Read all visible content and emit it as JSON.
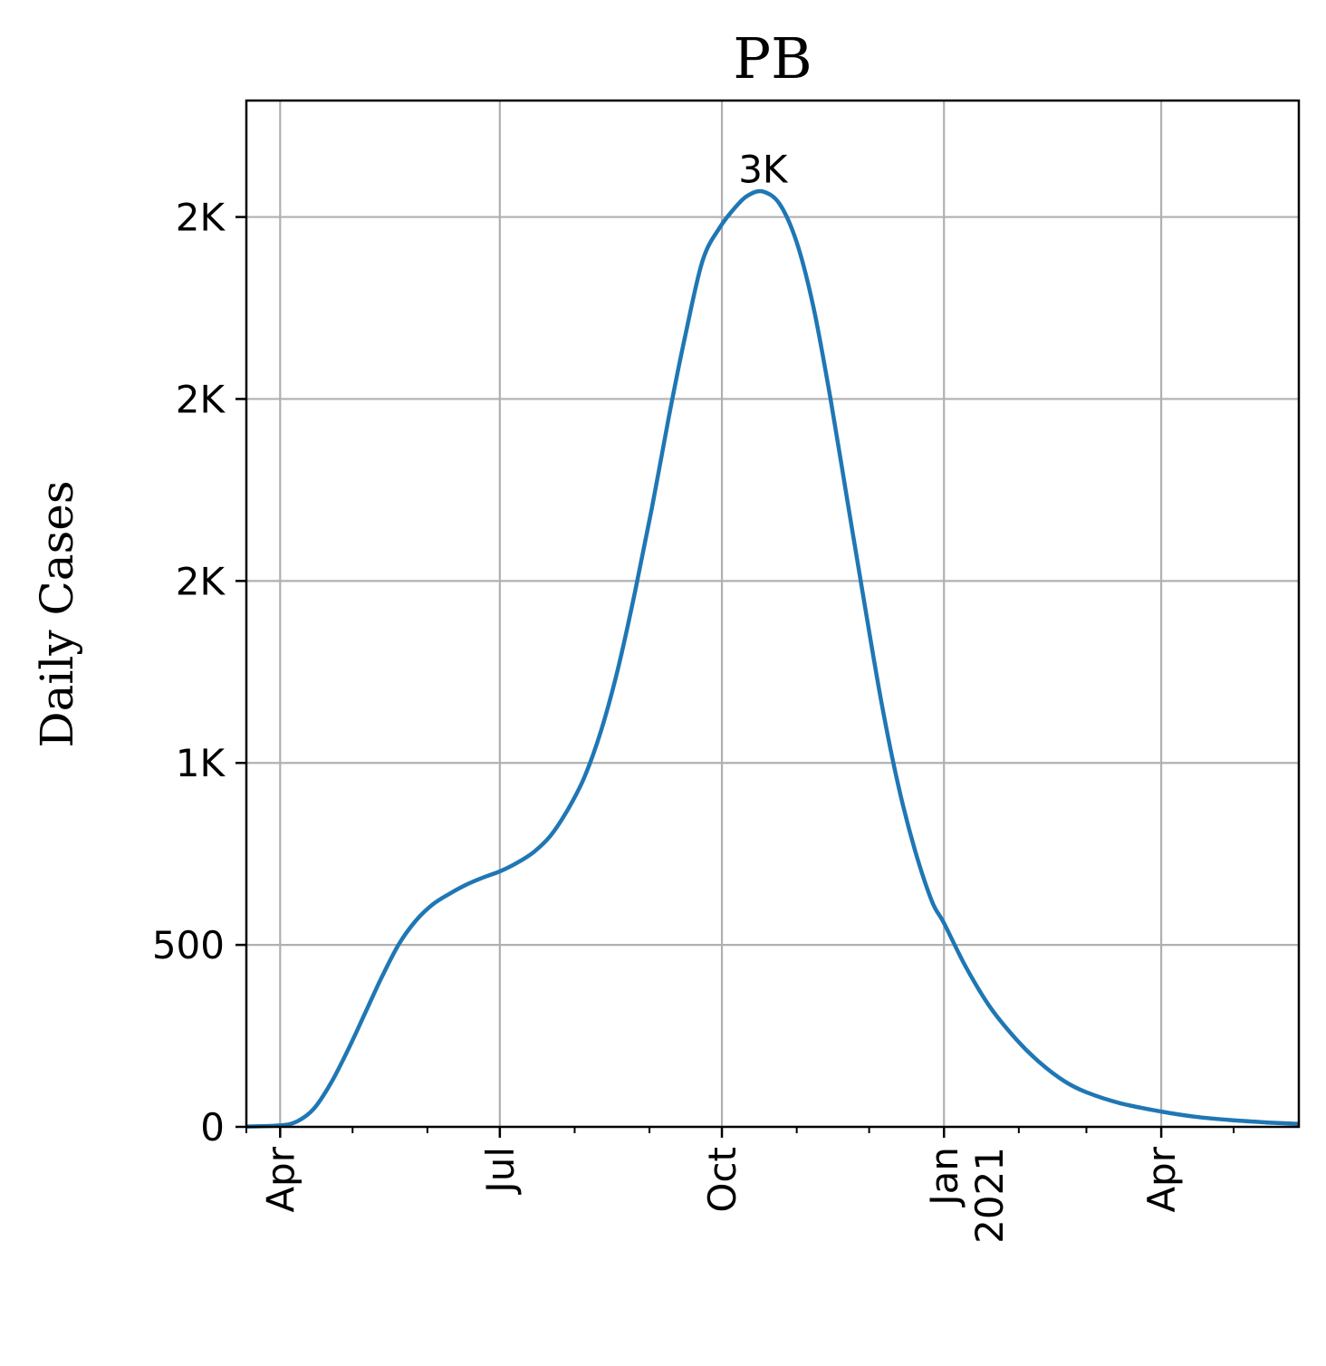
{
  "chart_data": {
    "type": "line",
    "title": "PB",
    "xlabel": "",
    "ylabel": "Daily Cases",
    "grid": true,
    "color": "#1f77b4",
    "x_range": [
      "2020-03-18",
      "2021-05-28"
    ],
    "ylim": [
      0,
      2820
    ],
    "x_ticks": [
      {
        "date": "2020-04-01",
        "label": "Apr"
      },
      {
        "date": "2020-07-01",
        "label": "Jul"
      },
      {
        "date": "2020-10-01",
        "label": "Oct"
      },
      {
        "date": "2021-01-01",
        "label": "Jan",
        "label2": "2021"
      },
      {
        "date": "2021-04-01",
        "label": "Apr"
      }
    ],
    "x_minor_ticks": [
      "2020-05-01",
      "2020-06-01",
      "2020-08-01",
      "2020-09-01",
      "2020-11-01",
      "2020-12-01",
      "2021-02-01",
      "2021-03-01",
      "2021-05-01"
    ],
    "y_ticks": [
      {
        "value": 0,
        "label": "0"
      },
      {
        "value": 500,
        "label": "500"
      },
      {
        "value": 1000,
        "label": "1K"
      },
      {
        "value": 1500,
        "label": "2K"
      },
      {
        "value": 2000,
        "label": "2K"
      },
      {
        "value": 2500,
        "label": "2K"
      }
    ],
    "annotation": {
      "text": "3K",
      "date": "2020-10-18",
      "value": 2570
    },
    "series": [
      {
        "points": [
          [
            "2020-03-18",
            1
          ],
          [
            "2020-04-01",
            4
          ],
          [
            "2020-04-08",
            15
          ],
          [
            "2020-04-15",
            50
          ],
          [
            "2020-04-22",
            120
          ],
          [
            "2020-04-29",
            210
          ],
          [
            "2020-05-06",
            310
          ],
          [
            "2020-05-13",
            410
          ],
          [
            "2020-05-20",
            500
          ],
          [
            "2020-05-27",
            565
          ],
          [
            "2020-06-03",
            610
          ],
          [
            "2020-06-10",
            640
          ],
          [
            "2020-06-17",
            665
          ],
          [
            "2020-06-24",
            685
          ],
          [
            "2020-07-01",
            702
          ],
          [
            "2020-07-08",
            725
          ],
          [
            "2020-07-15",
            755
          ],
          [
            "2020-07-22",
            800
          ],
          [
            "2020-07-29",
            870
          ],
          [
            "2020-08-05",
            960
          ],
          [
            "2020-08-12",
            1090
          ],
          [
            "2020-08-19",
            1260
          ],
          [
            "2020-08-26",
            1470
          ],
          [
            "2020-09-02",
            1700
          ],
          [
            "2020-09-09",
            1950
          ],
          [
            "2020-09-16",
            2180
          ],
          [
            "2020-09-23",
            2380
          ],
          [
            "2020-09-30",
            2470
          ],
          [
            "2020-10-07",
            2530
          ],
          [
            "2020-10-12",
            2560
          ],
          [
            "2020-10-18",
            2570
          ],
          [
            "2020-10-25",
            2535
          ],
          [
            "2020-11-01",
            2430
          ],
          [
            "2020-11-08",
            2250
          ],
          [
            "2020-11-15",
            2000
          ],
          [
            "2020-11-22",
            1720
          ],
          [
            "2020-11-29",
            1440
          ],
          [
            "2020-12-06",
            1170
          ],
          [
            "2020-12-13",
            940
          ],
          [
            "2020-12-20",
            760
          ],
          [
            "2020-12-27",
            620
          ],
          [
            "2021-01-01",
            560
          ],
          [
            "2021-01-10",
            440
          ],
          [
            "2021-01-20",
            330
          ],
          [
            "2021-01-31",
            240
          ],
          [
            "2021-02-10",
            175
          ],
          [
            "2021-02-20",
            125
          ],
          [
            "2021-03-01",
            95
          ],
          [
            "2021-03-15",
            65
          ],
          [
            "2021-04-01",
            42
          ],
          [
            "2021-04-15",
            28
          ],
          [
            "2021-05-01",
            18
          ],
          [
            "2021-05-15",
            12
          ],
          [
            "2021-05-28",
            8
          ]
        ]
      }
    ]
  }
}
